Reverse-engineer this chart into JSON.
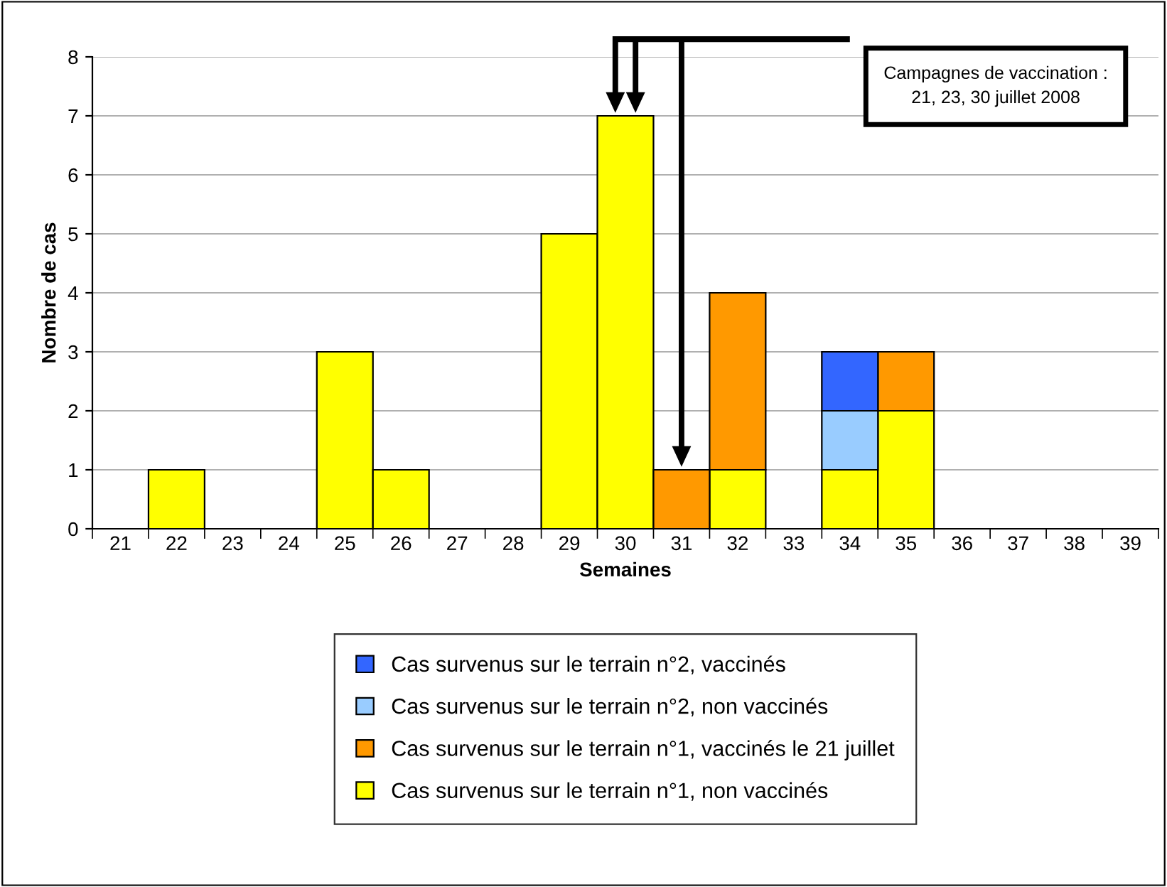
{
  "chart_data": {
    "type": "bar",
    "stacked": true,
    "xlabel": "Semaines",
    "ylabel": "Nombre de cas",
    "categories": [
      "21",
      "22",
      "23",
      "24",
      "25",
      "26",
      "27",
      "28",
      "29",
      "30",
      "31",
      "32",
      "33",
      "34",
      "35",
      "36",
      "37",
      "38",
      "39"
    ],
    "series": [
      {
        "name": "Cas survenus sur le terrain n°1, non vaccinés",
        "color": "#ffff00",
        "values": [
          0,
          1,
          0,
          0,
          3,
          1,
          0,
          0,
          5,
          7,
          0,
          1,
          0,
          1,
          2,
          0,
          0,
          0,
          0
        ]
      },
      {
        "name": "Cas survenus sur le terrain n°1, vaccinés le 21 juillet",
        "color": "#ff9900",
        "values": [
          0,
          0,
          0,
          0,
          0,
          0,
          0,
          0,
          0,
          0,
          1,
          3,
          0,
          0,
          1,
          0,
          0,
          0,
          0
        ]
      },
      {
        "name": "Cas survenus sur le terrain n°2, non vaccinés",
        "color": "#99ccff",
        "values": [
          0,
          0,
          0,
          0,
          0,
          0,
          0,
          0,
          0,
          0,
          0,
          0,
          0,
          1,
          0,
          0,
          0,
          0,
          0
        ]
      },
      {
        "name": "Cas survenus sur le terrain n°2, vaccinés",
        "color": "#3366ff",
        "values": [
          0,
          0,
          0,
          0,
          0,
          0,
          0,
          0,
          0,
          0,
          0,
          0,
          0,
          1,
          0,
          0,
          0,
          0,
          0
        ]
      }
    ],
    "ylim": [
      0,
      8
    ],
    "yticks": [
      0,
      1,
      2,
      3,
      4,
      5,
      6,
      7,
      8
    ],
    "grid": "y",
    "legend": "bottom",
    "annotations": [
      "Campagnes de vaccination :\n21, 23, 30 juillet 2008"
    ]
  }
}
